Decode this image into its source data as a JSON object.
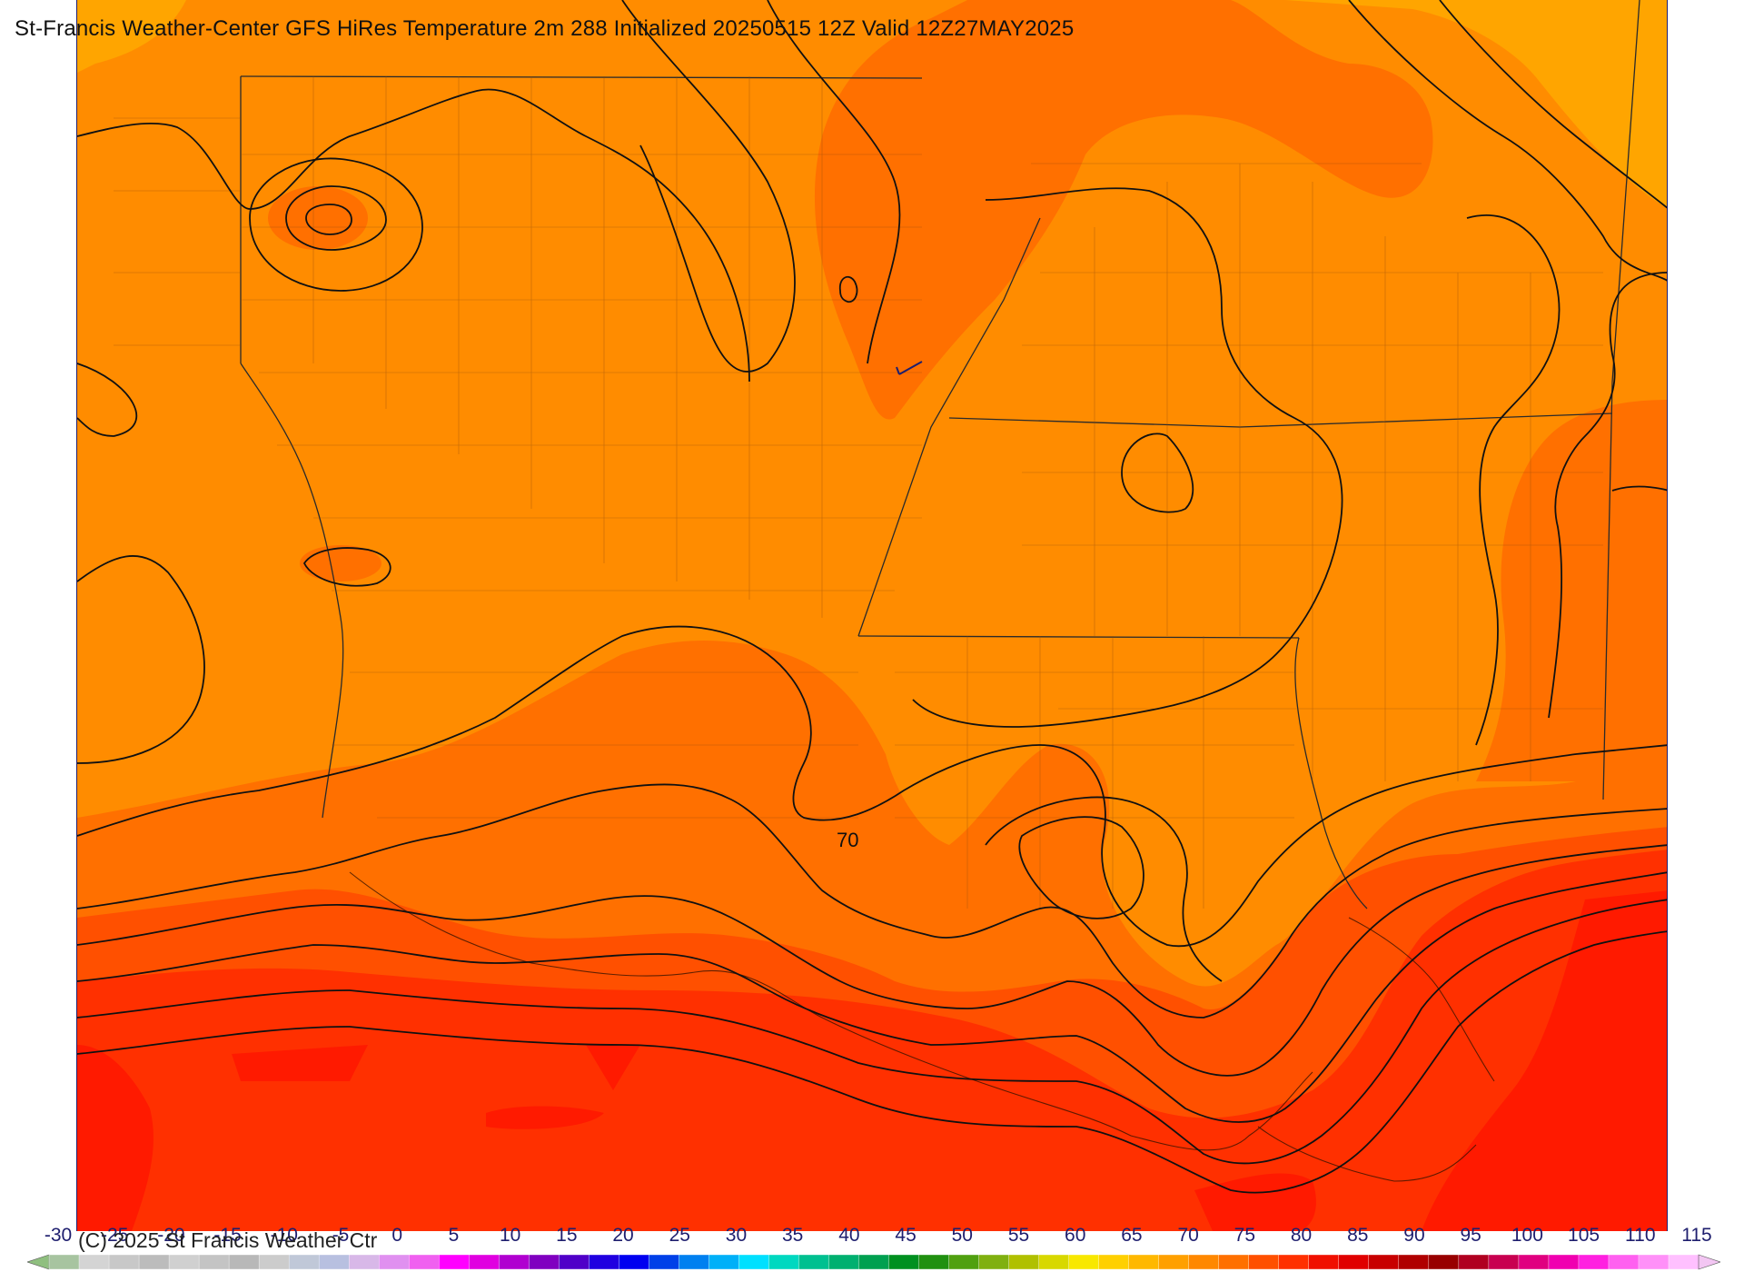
{
  "title": "St-Francis Weather-Center GFS HiRes Temperature 2m  288 Initialized 20250515 12Z Valid 12Z27MAY2025",
  "contour_label": "70",
  "copyright": "(C) 2025 St Francis Weather Ctr",
  "colorbar": {
    "ticks": [
      "-30",
      "-25",
      "-20",
      "-15",
      "-10",
      "-5",
      "0",
      "5",
      "10",
      "15",
      "20",
      "25",
      "30",
      "35",
      "40",
      "45",
      "50",
      "55",
      "60",
      "65",
      "70",
      "75",
      "80",
      "85",
      "90",
      "95",
      "100",
      "105",
      "110",
      "115"
    ],
    "colors": [
      "#a7c4a0",
      "#d4d4d4",
      "#c8c8c8",
      "#bcbcbc",
      "#d0d0d0",
      "#c4c4c4",
      "#b8b8b8",
      "#cccccc",
      "#c0c8d8",
      "#b8c0e0",
      "#d8b8e8",
      "#e090f0",
      "#f060f0",
      "#ff00ff",
      "#e000e0",
      "#b000d0",
      "#8000c0",
      "#5000c8",
      "#2000e0",
      "#0000f0",
      "#0040e8",
      "#0080f0",
      "#00b0f8",
      "#00e0ff",
      "#00d8c0",
      "#00c090",
      "#00b070",
      "#00a050",
      "#009020",
      "#209010",
      "#50a010",
      "#80b010",
      "#b0c000",
      "#d8d800",
      "#f8e800",
      "#ffd000",
      "#ffb800",
      "#ffa000",
      "#ff8800",
      "#ff7000",
      "#ff5000",
      "#ff3000",
      "#f01000",
      "#e00000",
      "#c80000",
      "#b00000",
      "#980000",
      "#b00020",
      "#c80050",
      "#e00080",
      "#f000b0",
      "#ff20e0",
      "#ff60f0",
      "#ff90f8",
      "#ffc0ff"
    ],
    "legend_left_color": "#8fbf7f",
    "legend_right_color": "#f3c6f3"
  },
  "fill_colors": {
    "amber": "#ffa500",
    "orange": "#ff8c00",
    "dark_orange": "#ff7000",
    "red_orange": "#ff5000",
    "red": "#ff3000",
    "deep_red": "#ff1a00"
  }
}
